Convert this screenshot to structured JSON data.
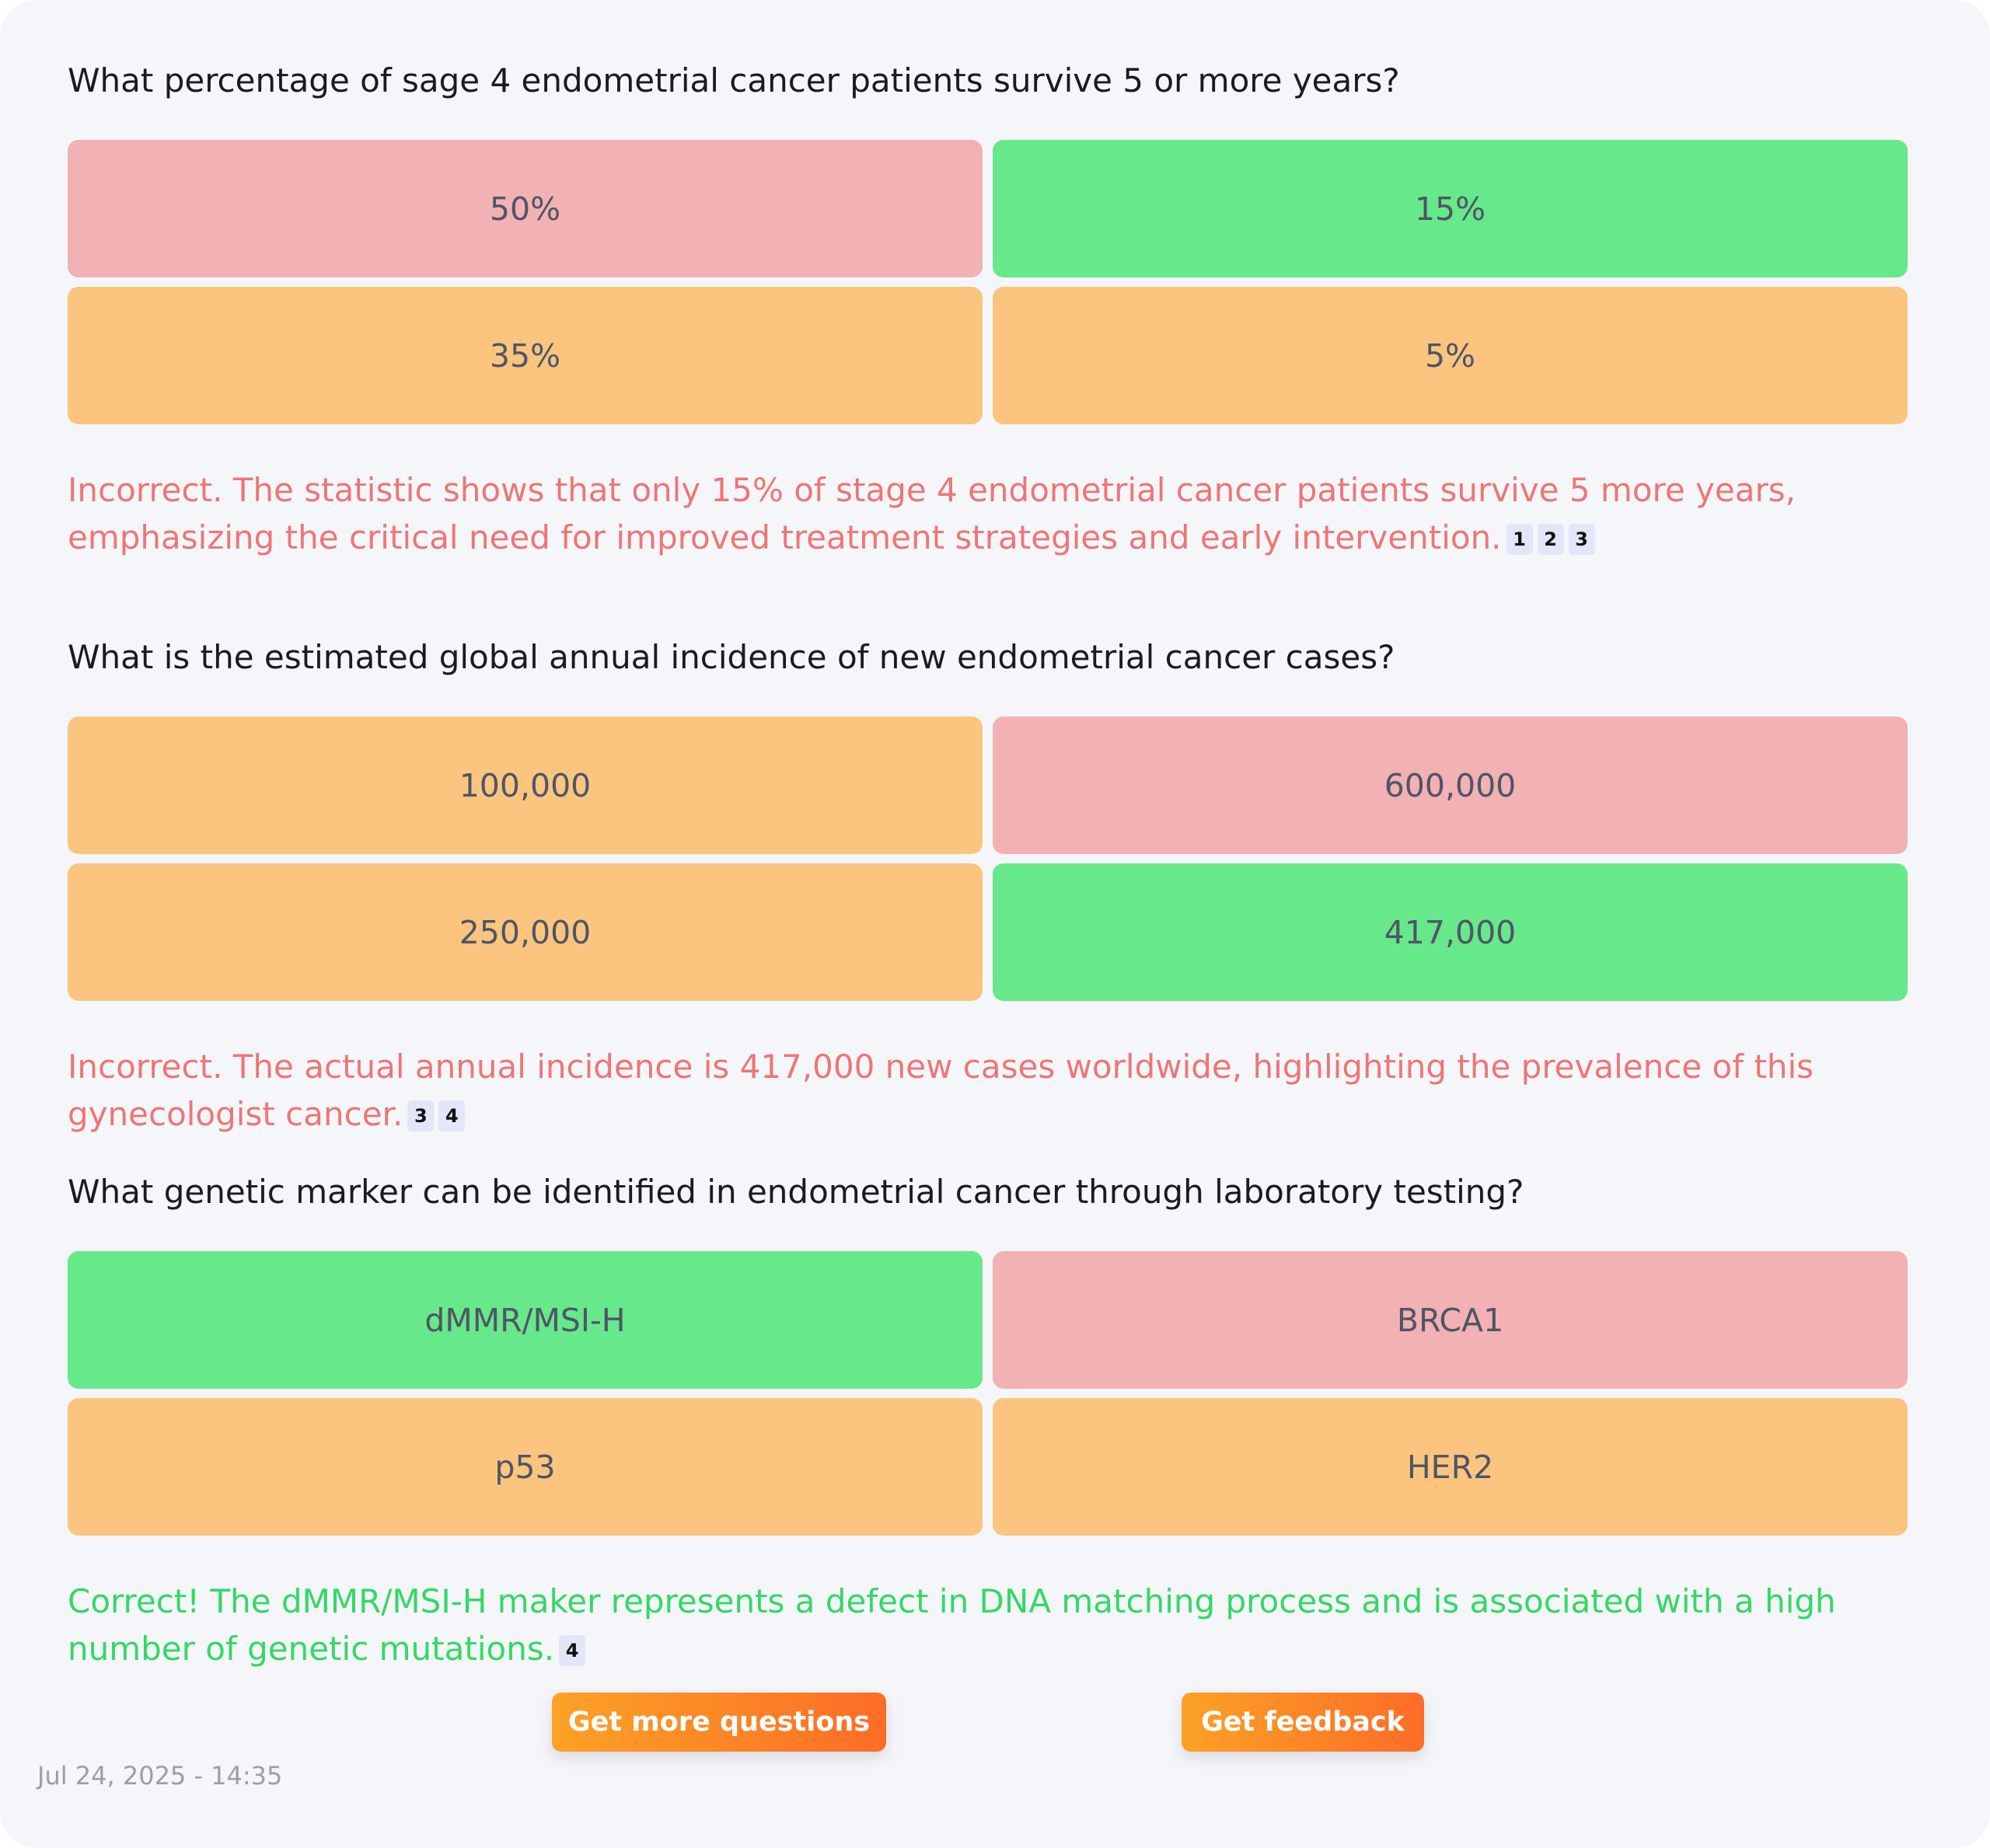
{
  "colors": {
    "correct": "#67e88a",
    "wrong": "#f2b1b3",
    "neutral": "#fbc57f",
    "feedback_incorrect": "#ef7575",
    "feedback_correct": "#34d865",
    "button_gradient_start": "#fca226",
    "button_gradient_end": "#fd6c27"
  },
  "questions": [
    {
      "text": "What percentage of sage 4 endometrial cancer patients survive 5 or more years?",
      "options": [
        {
          "label": "50%",
          "state": "wrong"
        },
        {
          "label": "15%",
          "state": "correct"
        },
        {
          "label": "35%",
          "state": "neutral"
        },
        {
          "label": "5%",
          "state": "neutral"
        }
      ],
      "feedback": "Incorrect. The statistic shows that only 15% of stage 4 endometrial cancer patients survive 5 more years, emphasizing the critical need for improved treatment strategies and early intervention.",
      "feedback_state": "incorrect",
      "citations": [
        "1",
        "2",
        "3"
      ]
    },
    {
      "text": "What is the estimated global annual incidence of new endometrial cancer cases?",
      "options": [
        {
          "label": "100,000",
          "state": "neutral"
        },
        {
          "label": "600,000",
          "state": "wrong"
        },
        {
          "label": "250,000",
          "state": "neutral"
        },
        {
          "label": "417,000",
          "state": "correct"
        }
      ],
      "feedback": "Incorrect. The actual annual incidence is 417,000 new cases worldwide, highlighting the prevalence of this gynecologist cancer.",
      "feedback_state": "incorrect",
      "citations": [
        "3",
        "4"
      ]
    },
    {
      "text": "What genetic marker can be identified in endometrial cancer through laboratory testing?",
      "options": [
        {
          "label": "dMMR/MSI-H",
          "state": "correct"
        },
        {
          "label": "BRCA1",
          "state": "wrong"
        },
        {
          "label": "p53",
          "state": "neutral"
        },
        {
          "label": "HER2",
          "state": "neutral"
        }
      ],
      "feedback": "Correct! The dMMR/MSI-H maker represents a defect in DNA matching process and is associated with a high number of genetic mutations.",
      "feedback_state": "correct",
      "citations": [
        "4"
      ]
    }
  ],
  "actions": {
    "more_questions_label": "Get more questions",
    "feedback_label": "Get feedback"
  },
  "timestamp": "Jul 24, 2025 - 14:35"
}
